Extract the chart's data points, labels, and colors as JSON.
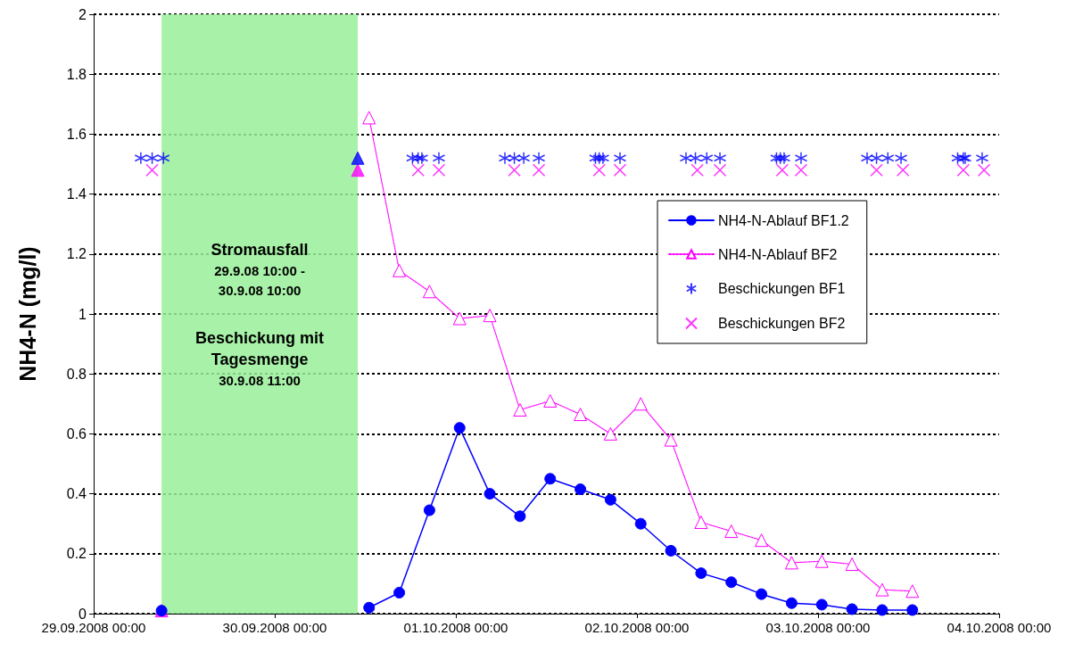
{
  "chart_data": {
    "type": "line",
    "ylabel": "NH4-N (mg/l)",
    "xlim": [
      "2008-09-29T00:00",
      "2008-10-04T00:00"
    ],
    "xticks": [
      {
        "value": "2008-09-29T00:00",
        "label": "29.09.2008 00:00"
      },
      {
        "value": "2008-09-30T00:00",
        "label": "30.09.2008 00:00"
      },
      {
        "value": "2008-10-01T00:00",
        "label": "01.10.2008 00:00"
      },
      {
        "value": "2008-10-02T00:00",
        "label": "02.10.2008 00:00"
      },
      {
        "value": "2008-10-03T00:00",
        "label": "03.10.2008 00:00"
      },
      {
        "value": "2008-10-04T00:00",
        "label": "04.10.2008 00:00"
      }
    ],
    "ylim": [
      0,
      2
    ],
    "yticks": [
      0,
      0.2,
      0.4,
      0.6,
      0.8,
      1,
      1.2,
      1.4,
      1.6,
      1.8,
      2
    ],
    "grid": "y",
    "legend": "right",
    "bands": [
      {
        "axis": "x",
        "from": "2008-09-29T09:00",
        "to": "2008-09-30T11:00",
        "color": "#99ee99"
      }
    ],
    "annotations": [
      "Stromausfall\n29.9.08 10:00 -\n30.9.08 10:00",
      "Beschickung mit\nTagesmenge\n30.9.08 11:00"
    ],
    "series": [
      {
        "name": "NH4-N-Ablauf BF1.2",
        "color": "#0000ff",
        "marker": "circle",
        "line_style": "solid",
        "x": [
          "2008-09-29T09:00",
          "2008-09-29T10:00",
          "2008-09-30T12:30",
          "2008-09-30T16:30",
          "2008-09-30T20:30",
          "2008-10-01T00:30",
          "2008-10-01T04:30",
          "2008-10-01T08:30",
          "2008-10-01T12:30",
          "2008-10-01T16:30",
          "2008-10-01T20:30",
          "2008-10-02T00:30",
          "2008-10-02T04:30",
          "2008-10-02T08:30",
          "2008-10-02T12:30",
          "2008-10-02T16:30",
          "2008-10-02T20:30",
          "2008-10-03T00:30",
          "2008-10-03T04:30",
          "2008-10-03T08:30",
          "2008-10-03T12:30"
        ],
        "values": [
          0.01,
          null,
          0.02,
          0.07,
          0.345,
          0.62,
          0.4,
          0.325,
          0.45,
          0.415,
          0.38,
          0.3,
          0.21,
          0.135,
          0.105,
          0.065,
          0.035,
          0.03,
          0.015,
          0.012,
          0.012
        ]
      },
      {
        "name": "NH4-N-Ablauf BF2",
        "color": "#ff00ff",
        "marker": "triangle",
        "line_style": "dotted",
        "x": [
          "2008-09-30T12:30",
          "2008-09-30T16:30",
          "2008-09-30T20:30",
          "2008-10-01T00:30",
          "2008-10-01T04:30",
          "2008-10-01T08:30",
          "2008-10-01T12:30",
          "2008-10-01T16:30",
          "2008-10-01T20:30",
          "2008-10-02T00:30",
          "2008-10-02T04:30",
          "2008-10-02T08:30",
          "2008-10-02T12:30",
          "2008-10-02T16:30",
          "2008-10-02T20:30",
          "2008-10-03T00:30",
          "2008-10-03T04:30",
          "2008-10-03T08:30",
          "2008-10-03T12:30"
        ],
        "values": [
          1.655,
          1.145,
          1.075,
          0.985,
          0.995,
          0.68,
          0.71,
          0.665,
          0.6,
          0.7,
          0.58,
          0.305,
          0.275,
          0.245,
          0.17,
          0.175,
          0.165,
          0.08,
          0.075
        ]
      },
      {
        "name": "Beschickungen BF1",
        "type": "scatter",
        "color": "#0000ff",
        "marker": "cross",
        "x": [
          "2008-09-29T06:15",
          "2008-09-29T07:45",
          "2008-09-29T09:15",
          "2008-09-30T18:15",
          "2008-09-30T19:00",
          "2008-09-30T19:30",
          "2008-09-30T21:45",
          "2008-10-01T06:30",
          "2008-10-01T07:45",
          "2008-10-01T09:00",
          "2008-10-01T11:00",
          "2008-10-01T18:30",
          "2008-10-01T19:00",
          "2008-10-01T19:30",
          "2008-10-01T21:45",
          "2008-10-02T06:30",
          "2008-10-02T07:45",
          "2008-10-02T09:15",
          "2008-10-02T11:00",
          "2008-10-02T18:30",
          "2008-10-02T19:00",
          "2008-10-02T19:30",
          "2008-10-02T21:45",
          "2008-10-03T06:30",
          "2008-10-03T07:45",
          "2008-10-03T09:15",
          "2008-10-03T11:00",
          "2008-10-03T18:30",
          "2008-10-03T19:15",
          "2008-10-03T19:30",
          "2008-10-03T21:45"
        ],
        "values": [
          1.52,
          1.52,
          1.52,
          1.52,
          1.52,
          1.52,
          1.52,
          1.52,
          1.52,
          1.52,
          1.52,
          1.52,
          1.52,
          1.52,
          1.52,
          1.52,
          1.52,
          1.52,
          1.52,
          1.52,
          1.52,
          1.52,
          1.52,
          1.52,
          1.52,
          1.52,
          1.52,
          1.52,
          1.52,
          1.52,
          1.52
        ]
      },
      {
        "name": "Beschickungen BF2",
        "type": "scatter",
        "color": "#ff00ff",
        "marker": "cross",
        "x": [
          "2008-09-29T07:45",
          "2008-09-30T19:00",
          "2008-09-30T21:45",
          "2008-10-01T07:45",
          "2008-10-01T11:00",
          "2008-10-01T19:00",
          "2008-10-01T21:45",
          "2008-10-02T08:00",
          "2008-10-02T11:00",
          "2008-10-02T19:15",
          "2008-10-02T21:45",
          "2008-10-03T07:45",
          "2008-10-03T11:15",
          "2008-10-03T19:15",
          "2008-10-03T22:00"
        ],
        "values": [
          1.48,
          1.48,
          1.48,
          1.48,
          1.48,
          1.48,
          1.48,
          1.48,
          1.48,
          1.48,
          1.48,
          1.48,
          1.48,
          1.48,
          1.48
        ]
      },
      {
        "type": "scatter",
        "color": "#ff00ff",
        "marker": "triangle",
        "x": [
          "2008-09-29T09:00",
          "2008-09-30T11:00"
        ],
        "values": [
          0.01,
          1.48
        ]
      },
      {
        "type": "scatter",
        "color": "#0000ff",
        "marker": "triangle",
        "x": [
          "2008-09-30T11:00"
        ],
        "values": [
          1.52
        ]
      }
    ]
  }
}
